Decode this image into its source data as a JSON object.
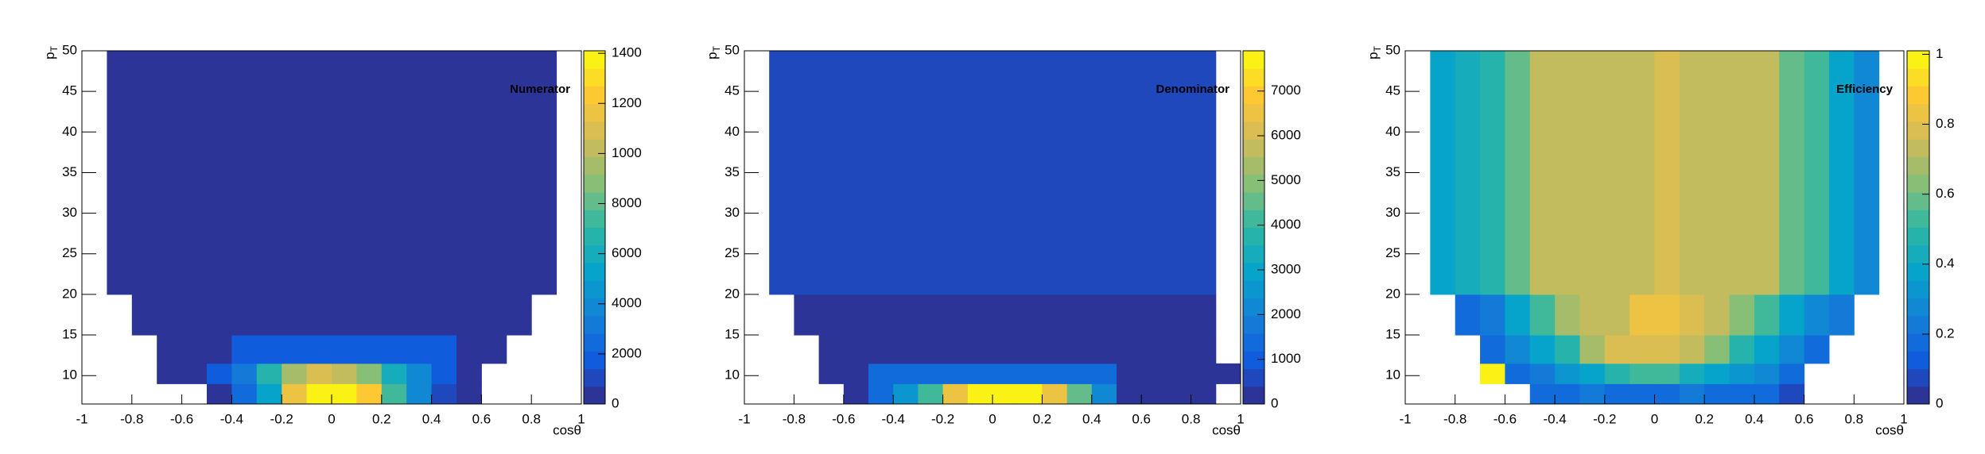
{
  "chart_data": [
    {
      "type": "heatmap",
      "title": "Numerator",
      "x_label": "cosθ",
      "y_label": "p",
      "y_label_sub": "T",
      "xbins": [
        -1,
        -0.9,
        -0.8,
        -0.7,
        -0.6,
        -0.5,
        -0.4,
        -0.3,
        -0.2,
        -0.1,
        0,
        0.1,
        0.2,
        0.3,
        0.4,
        0.5,
        0.6,
        0.7,
        0.8,
        0.9,
        1
      ],
      "ybins": [
        6.5,
        9,
        11.5,
        15,
        20,
        50
      ],
      "values": [
        [
          null,
          null,
          null,
          null,
          null,
          400,
          2200,
          5600,
          11800,
          13800,
          14000,
          12300,
          7200,
          4200,
          900,
          300,
          null,
          null,
          null,
          null
        ],
        [
          null,
          null,
          null,
          150,
          300,
          1600,
          3000,
          6400,
          9200,
          10600,
          10200,
          9000,
          6000,
          3600,
          1700,
          300,
          null,
          null,
          null,
          null
        ],
        [
          null,
          null,
          null,
          120,
          200,
          400,
          1700,
          2100,
          2100,
          2100,
          2100,
          2100,
          2100,
          1800,
          1600,
          300,
          150,
          null,
          null,
          null
        ],
        [
          null,
          null,
          80,
          120,
          150,
          200,
          250,
          300,
          300,
          300,
          300,
          300,
          300,
          250,
          200,
          150,
          120,
          80,
          null,
          null
        ],
        [
          null,
          100,
          150,
          200,
          250,
          300,
          350,
          400,
          400,
          400,
          400,
          400,
          400,
          350,
          300,
          250,
          200,
          150,
          100,
          null
        ]
      ],
      "xlim": [
        -1,
        1
      ],
      "ylim": [
        6.5,
        50
      ],
      "xticks": [
        -1,
        -0.8,
        -0.6,
        -0.4,
        -0.2,
        0,
        0.2,
        0.4,
        0.6,
        0.8,
        1
      ],
      "yticks": [
        10,
        15,
        20,
        25,
        30,
        35,
        40,
        45,
        50
      ],
      "zlim": [
        0,
        14100
      ],
      "zticks": [
        0,
        2000,
        4000,
        6000,
        8000,
        10000,
        12000,
        14000
      ],
      "contours": 20,
      "palette": [
        "#352a87",
        "#0f5cdd",
        "#1481d6",
        "#06a4ca",
        "#2eb7a4",
        "#87bf77",
        "#d1bb59",
        "#fec832",
        "#f9fb0e"
      ]
    },
    {
      "type": "heatmap",
      "title": "Denominator",
      "x_label": "cosθ",
      "y_label": "p",
      "y_label_sub": "T",
      "xbins": [
        -1,
        -0.9,
        -0.8,
        -0.7,
        -0.6,
        -0.5,
        -0.4,
        -0.3,
        -0.2,
        -0.1,
        0,
        0.1,
        0.2,
        0.3,
        0.4,
        0.5,
        0.6,
        0.7,
        0.8,
        0.9,
        1
      ],
      "ybins": [
        6.5,
        9,
        11.5,
        15,
        20,
        50
      ],
      "values": [
        [
          null,
          null,
          null,
          null,
          300,
          1500,
          2600,
          4100,
          6600,
          7700,
          7800,
          7600,
          6400,
          4600,
          2100,
          300,
          300,
          300,
          300,
          null
        ],
        [
          null,
          null,
          null,
          200,
          300,
          1200,
          1200,
          1200,
          1200,
          1200,
          1200,
          1200,
          1200,
          1200,
          1200,
          300,
          300,
          300,
          300,
          300
        ],
        [
          null,
          null,
          null,
          300,
          300,
          300,
          300,
          300,
          300,
          300,
          300,
          300,
          300,
          300,
          300,
          300,
          300,
          300,
          300,
          null
        ],
        [
          null,
          null,
          300,
          300,
          300,
          300,
          300,
          300,
          300,
          300,
          300,
          300,
          300,
          300,
          300,
          300,
          300,
          300,
          300,
          null
        ],
        [
          null,
          400,
          400,
          400,
          400,
          400,
          400,
          400,
          400,
          400,
          400,
          400,
          400,
          400,
          400,
          400,
          400,
          400,
          400,
          null
        ]
      ],
      "xlim": [
        -1,
        1
      ],
      "ylim": [
        6.5,
        50
      ],
      "xticks": [
        -1,
        -0.8,
        -0.6,
        -0.4,
        -0.2,
        0,
        0.2,
        0.4,
        0.6,
        0.8,
        1
      ],
      "yticks": [
        10,
        15,
        20,
        25,
        30,
        35,
        40,
        45,
        50
      ],
      "zlim": [
        0,
        7900
      ],
      "zticks": [
        0,
        1000,
        2000,
        3000,
        4000,
        5000,
        6000,
        7000
      ],
      "contours": 20,
      "palette": [
        "#352a87",
        "#0f5cdd",
        "#1481d6",
        "#06a4ca",
        "#2eb7a4",
        "#87bf77",
        "#d1bb59",
        "#fec832",
        "#f9fb0e"
      ]
    },
    {
      "type": "heatmap",
      "title": "Efficiency",
      "x_label": "cosθ",
      "y_label": "p",
      "y_label_sub": "T",
      "xbins": [
        -1,
        -0.9,
        -0.8,
        -0.7,
        -0.6,
        -0.5,
        -0.4,
        -0.3,
        -0.2,
        -0.1,
        0,
        0.1,
        0.2,
        0.3,
        0.4,
        0.5,
        0.6,
        0.7,
        0.8,
        0.9,
        1
      ],
      "ybins": [
        6.5,
        9,
        11.5,
        15,
        20,
        50
      ],
      "values": [
        [
          null,
          null,
          null,
          null,
          null,
          0.18,
          0.2,
          0.22,
          0.2,
          0.19,
          0.2,
          0.21,
          0.2,
          0.19,
          0.18,
          0.1,
          null,
          null,
          null,
          null
        ],
        [
          null,
          null,
          null,
          1.0,
          0.2,
          0.24,
          0.33,
          0.4,
          0.46,
          0.55,
          0.55,
          0.44,
          0.39,
          0.33,
          0.27,
          0.2,
          null,
          null,
          null,
          null
        ],
        [
          null,
          null,
          null,
          0.2,
          0.28,
          0.4,
          0.5,
          0.7,
          0.8,
          0.8,
          0.8,
          0.75,
          0.65,
          0.46,
          0.38,
          0.28,
          0.2,
          null,
          null,
          null
        ],
        [
          null,
          null,
          0.2,
          0.25,
          0.36,
          0.55,
          0.7,
          0.75,
          0.75,
          0.82,
          0.82,
          0.78,
          0.72,
          0.65,
          0.55,
          0.4,
          0.28,
          0.22,
          null,
          null
        ],
        [
          null,
          0.38,
          0.42,
          0.5,
          0.58,
          0.74,
          0.74,
          0.74,
          0.74,
          0.74,
          0.8,
          0.74,
          0.74,
          0.74,
          0.74,
          0.6,
          0.52,
          0.4,
          0.27,
          null
        ]
      ],
      "xlim": [
        -1,
        1
      ],
      "ylim": [
        6.5,
        50
      ],
      "xticks": [
        -1,
        -0.8,
        -0.6,
        -0.4,
        -0.2,
        0,
        0.2,
        0.4,
        0.6,
        0.8,
        1
      ],
      "yticks": [
        10,
        15,
        20,
        25,
        30,
        35,
        40,
        45,
        50
      ],
      "zlim": [
        0,
        1.01
      ],
      "zticks": [
        0,
        0.2,
        0.4,
        0.6,
        0.8,
        1
      ],
      "contours": 20,
      "palette": [
        "#352a87",
        "#0f5cdd",
        "#1481d6",
        "#06a4ca",
        "#2eb7a4",
        "#87bf77",
        "#d1bb59",
        "#fec832",
        "#f9fb0e"
      ]
    }
  ]
}
